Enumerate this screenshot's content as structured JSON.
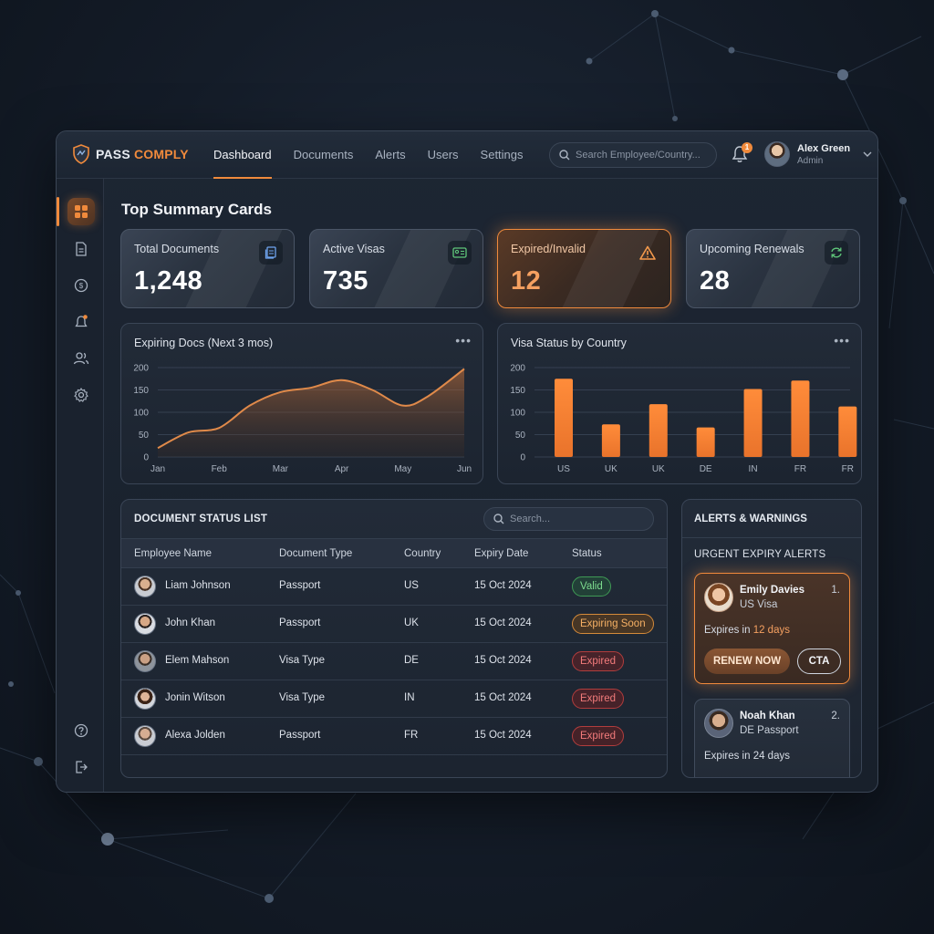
{
  "brand": {
    "name_a": "PASS ",
    "name_b": "COMPLY",
    "logo_icon": "shield-logo-icon"
  },
  "nav": {
    "items": [
      {
        "label": "Dashboard",
        "active": true
      },
      {
        "label": "Documents",
        "active": false
      },
      {
        "label": "Alerts",
        "active": false
      },
      {
        "label": "Users",
        "active": false
      },
      {
        "label": "Settings",
        "active": false
      }
    ],
    "search_placeholder": "Search Employee/Country..."
  },
  "notifications": {
    "count": "1",
    "icon": "bell-icon"
  },
  "user": {
    "name": "Alex Green",
    "role": "Admin"
  },
  "sidebar": {
    "icons": [
      "dashboard-grid-icon",
      "document-icon",
      "currency-icon",
      "alert-bell-icon",
      "users-icon",
      "settings-gear-icon",
      "help-icon",
      "logout-icon"
    ]
  },
  "main": {
    "section_title": "Top Summary Cards"
  },
  "summary_cards": [
    {
      "label": "Total Documents",
      "value": "1,248",
      "icon": "document-stack-icon"
    },
    {
      "label": "Active Visas",
      "value": "735",
      "icon": "id-card-icon"
    },
    {
      "label": "Expired/Invalid",
      "value": "12",
      "icon": "warning-triangle-icon"
    },
    {
      "label": "Upcoming Renewals",
      "value": "28",
      "icon": "refresh-icon"
    }
  ],
  "colors": {
    "accent": "#f08a3c",
    "valid": "#7ddc8f",
    "expired": "#f27b7b",
    "background": "#141c28"
  },
  "chart_data": [
    {
      "type": "area",
      "title": "Expiring Docs (Next 3 mos)",
      "x": [
        "Jan",
        "Feb",
        "Mar",
        "Apr",
        "May",
        "Jun"
      ],
      "y_ticks": [
        "200",
        "150",
        "100",
        "50",
        "0"
      ],
      "ylim": [
        0,
        200
      ],
      "curve_x": [
        0,
        0.5,
        1,
        1.5,
        2,
        2.5,
        3,
        3.5,
        4,
        4.4,
        5
      ],
      "curve_y": [
        20,
        55,
        65,
        115,
        145,
        155,
        172,
        150,
        115,
        135,
        197
      ],
      "grid": true
    },
    {
      "type": "bar",
      "title": "Visa Status by Country",
      "categories": [
        "US",
        "UK",
        "UK",
        "DE",
        "IN",
        "FR",
        "FR"
      ],
      "values": [
        175,
        73,
        118,
        66,
        152,
        171,
        113
      ],
      "y_ticks": [
        "200",
        "150",
        "100",
        "50",
        "0"
      ],
      "ylim": [
        0,
        200
      ],
      "grid": true
    }
  ],
  "doc_list": {
    "title": "DOCUMENT STATUS LIST",
    "search_placeholder": "Search...",
    "columns": [
      "Employee Name",
      "Document Type",
      "Country",
      "Expiry Date",
      "Status"
    ],
    "rows": [
      {
        "name": "Liam Johnson",
        "doc": "Passport",
        "country": "US",
        "date": "15 Oct 2024",
        "status": "Valid",
        "kind": "valid"
      },
      {
        "name": "John Khan",
        "doc": "Passport",
        "country": "UK",
        "date": "15 Oct 2024",
        "status": "Expiring Soon",
        "kind": "soon"
      },
      {
        "name": "Elem Mahson",
        "doc": "Visa Type",
        "country": "DE",
        "date": "15 Oct 2024",
        "status": "Expired",
        "kind": "expired"
      },
      {
        "name": "Jonin Witson",
        "doc": "Visa Type",
        "country": "IN",
        "date": "15 Oct 2024",
        "status": "Expired",
        "kind": "expired"
      },
      {
        "name": "Alexa Jolden",
        "doc": "Passport",
        "country": "FR",
        "date": "15 Oct 2024",
        "status": "Expired",
        "kind": "expired"
      }
    ]
  },
  "alerts": {
    "title": "ALERTS & WARNINGS",
    "subtitle": "URGENT EXPIRY ALERTS",
    "items": [
      {
        "name": "Emily Davies",
        "doc": "US Visa",
        "num": "1.",
        "expires_prefix": "Expires in ",
        "expires_days": "12 days",
        "renew_label": "RENEW NOW",
        "cta_label": "CTA"
      },
      {
        "name": "Noah Khan",
        "doc": "DE Passport",
        "num": "2.",
        "expires_prefix": "Expires in ",
        "expires_days": "24 days"
      }
    ]
  }
}
